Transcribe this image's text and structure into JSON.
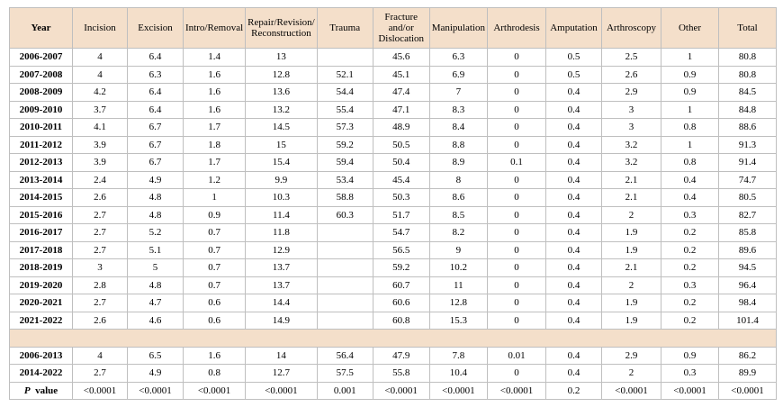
{
  "table": {
    "header": [
      "Year",
      "Incision",
      "Excision",
      "Intro/Removal",
      "Repair/Revision/ Reconstruction",
      "Trauma",
      "Fracture and/or Dislocation",
      "Manipulation",
      "Arthrodesis",
      "Amputation",
      "Arthroscopy",
      "Other",
      "Total"
    ],
    "rows": [
      [
        "2006-2007",
        "4",
        "6.4",
        "1.4",
        "13",
        null,
        "45.6",
        "6.3",
        "0",
        "0.5",
        "2.5",
        "1",
        "80.8"
      ],
      [
        "2007-2008",
        "4",
        "6.3",
        "1.6",
        "12.8",
        "52.1",
        "45.1",
        "6.9",
        "0",
        "0.5",
        "2.6",
        "0.9",
        "80.8"
      ],
      [
        "2008-2009",
        "4.2",
        "6.4",
        "1.6",
        "13.6",
        "54.4",
        "47.4",
        "7",
        "0",
        "0.4",
        "2.9",
        "0.9",
        "84.5"
      ],
      [
        "2009-2010",
        "3.7",
        "6.4",
        "1.6",
        "13.2",
        "55.4",
        "47.1",
        "8.3",
        "0",
        "0.4",
        "3",
        "1",
        "84.8"
      ],
      [
        "2010-2011",
        "4.1",
        "6.7",
        "1.7",
        "14.5",
        "57.3",
        "48.9",
        "8.4",
        "0",
        "0.4",
        "3",
        "0.8",
        "88.6"
      ],
      [
        "2011-2012",
        "3.9",
        "6.7",
        "1.8",
        "15",
        "59.2",
        "50.5",
        "8.8",
        "0",
        "0.4",
        "3.2",
        "1",
        "91.3"
      ],
      [
        "2012-2013",
        "3.9",
        "6.7",
        "1.7",
        "15.4",
        "59.4",
        "50.4",
        "8.9",
        "0.1",
        "0.4",
        "3.2",
        "0.8",
        "91.4"
      ],
      [
        "2013-2014",
        "2.4",
        "4.9",
        "1.2",
        "9.9",
        "53.4",
        "45.4",
        "8",
        "0",
        "0.4",
        "2.1",
        "0.4",
        "74.7"
      ],
      [
        "2014-2015",
        "2.6",
        "4.8",
        "1",
        "10.3",
        "58.8",
        "50.3",
        "8.6",
        "0",
        "0.4",
        "2.1",
        "0.4",
        "80.5"
      ],
      [
        "2015-2016",
        "2.7",
        "4.8",
        "0.9",
        "11.4",
        "60.3",
        "51.7",
        "8.5",
        "0",
        "0.4",
        "2",
        "0.3",
        "82.7"
      ],
      [
        "2016-2017",
        "2.7",
        "5.2",
        "0.7",
        "11.8",
        null,
        "54.7",
        "8.2",
        "0",
        "0.4",
        "1.9",
        "0.2",
        "85.8"
      ],
      [
        "2017-2018",
        "2.7",
        "5.1",
        "0.7",
        "12.9",
        null,
        "56.5",
        "9",
        "0",
        "0.4",
        "1.9",
        "0.2",
        "89.6"
      ],
      [
        "2018-2019",
        "3",
        "5",
        "0.7",
        "13.7",
        null,
        "59.2",
        "10.2",
        "0",
        "0.4",
        "2.1",
        "0.2",
        "94.5"
      ],
      [
        "2019-2020",
        "2.8",
        "4.8",
        "0.7",
        "13.7",
        null,
        "60.7",
        "11",
        "0",
        "0.4",
        "2",
        "0.3",
        "96.4"
      ],
      [
        "2020-2021",
        "2.7",
        "4.7",
        "0.6",
        "14.4",
        null,
        "60.6",
        "12.8",
        "0",
        "0.4",
        "1.9",
        "0.2",
        "98.4"
      ],
      [
        "2021-2022",
        "2.6",
        "4.6",
        "0.6",
        "14.9",
        null,
        "60.8",
        "15.3",
        "0",
        "0.4",
        "1.9",
        "0.2",
        "101.4"
      ]
    ],
    "summary_rows": [
      [
        "2006-2013",
        "4",
        "6.5",
        "1.6",
        "14",
        "56.4",
        "47.9",
        "7.8",
        "0.01",
        "0.4",
        "2.9",
        "0.9",
        "86.2"
      ],
      [
        "2014-2022",
        "2.7",
        "4.9",
        "0.8",
        "12.7",
        "57.5",
        "55.8",
        "10.4",
        "0",
        "0.4",
        "2",
        "0.3",
        "89.9"
      ]
    ],
    "p_value_row": {
      "label_italic": "P",
      "label": "value",
      "values": [
        "<0.0001",
        "<0.0001",
        "<0.0001",
        "<0.0001",
        "0.001",
        "<0.0001",
        "<0.0001",
        "<0.0001",
        "0.2",
        "<0.0001",
        "<0.0001",
        "<0.0001"
      ]
    }
  }
}
